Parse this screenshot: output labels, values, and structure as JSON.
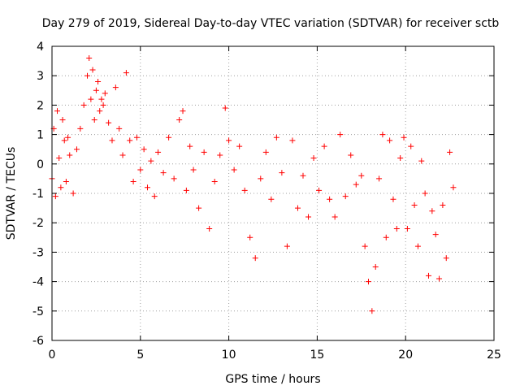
{
  "chart_data": {
    "type": "scatter",
    "title": "Day 279 of 2019, Sidereal Day-to-day VTEC variation (SDTVAR) for receiver sctb",
    "xlabel": "GPS time / hours",
    "ylabel": "SDTVAR / TECUs",
    "xlim": [
      0,
      25
    ],
    "ylim": [
      -6,
      4
    ],
    "xticks": [
      0,
      5,
      10,
      15,
      20,
      25
    ],
    "yticks": [
      -6,
      -5,
      -4,
      -3,
      -2,
      -1,
      0,
      1,
      2,
      3,
      4
    ],
    "grid": true,
    "marker": "+",
    "color": "#ff0000",
    "series": [
      {
        "name": "SDTVAR",
        "x": [
          0.0,
          0.1,
          0.2,
          0.3,
          0.4,
          0.5,
          0.6,
          0.7,
          0.8,
          0.9,
          1.0,
          1.2,
          1.4,
          1.6,
          1.8,
          2.0,
          2.1,
          2.2,
          2.3,
          2.4,
          2.5,
          2.6,
          2.7,
          2.8,
          2.9,
          3.0,
          3.2,
          3.4,
          3.6,
          3.8,
          4.0,
          4.2,
          4.4,
          4.6,
          4.8,
          5.0,
          5.2,
          5.4,
          5.6,
          5.8,
          6.0,
          6.3,
          6.6,
          6.9,
          7.2,
          7.4,
          7.6,
          7.8,
          8.0,
          8.3,
          8.6,
          8.9,
          9.2,
          9.5,
          9.8,
          10.0,
          10.3,
          10.6,
          10.9,
          11.2,
          11.5,
          11.8,
          12.1,
          12.4,
          12.7,
          13.0,
          13.3,
          13.6,
          13.9,
          14.2,
          14.5,
          14.8,
          15.1,
          15.4,
          15.7,
          16.0,
          16.3,
          16.6,
          16.9,
          17.2,
          17.5,
          17.7,
          17.9,
          18.1,
          18.3,
          18.5,
          18.7,
          18.9,
          19.1,
          19.3,
          19.5,
          19.7,
          19.9,
          20.1,
          20.3,
          20.5,
          20.7,
          20.9,
          21.1,
          21.3,
          21.5,
          21.7,
          21.9,
          22.1,
          22.3,
          22.5,
          22.7
        ],
        "y": [
          -0.5,
          1.2,
          -1.1,
          1.8,
          0.2,
          -0.8,
          1.5,
          0.8,
          -0.6,
          0.9,
          0.3,
          -1.0,
          0.5,
          1.2,
          2.0,
          3.0,
          3.6,
          2.2,
          3.2,
          1.5,
          2.5,
          2.8,
          1.8,
          2.2,
          2.0,
          2.4,
          1.4,
          0.8,
          2.6,
          1.2,
          0.3,
          3.1,
          0.8,
          -0.6,
          0.9,
          -0.2,
          0.5,
          -0.8,
          0.1,
          -1.1,
          0.4,
          -0.3,
          0.9,
          -0.5,
          1.5,
          1.8,
          -0.9,
          0.6,
          -0.2,
          -1.5,
          0.4,
          -2.2,
          -0.6,
          0.3,
          1.9,
          0.8,
          -0.2,
          0.6,
          -0.9,
          -2.5,
          -3.2,
          -0.5,
          0.4,
          -1.2,
          0.9,
          -0.3,
          -2.8,
          0.8,
          -1.5,
          -0.4,
          -1.8,
          0.2,
          -0.9,
          0.6,
          -1.2,
          -1.8,
          1.0,
          -1.1,
          0.3,
          -0.7,
          -0.4,
          -2.8,
          -4.0,
          -5.0,
          -3.5,
          -0.5,
          1.0,
          -2.5,
          0.8,
          -1.2,
          -2.2,
          0.2,
          0.9,
          -2.2,
          0.6,
          -1.4,
          -2.8,
          0.1,
          -1.0,
          -3.8,
          -1.6,
          -2.4,
          -3.9,
          -1.4,
          -3.2,
          0.4,
          -0.8
        ]
      }
    ]
  }
}
